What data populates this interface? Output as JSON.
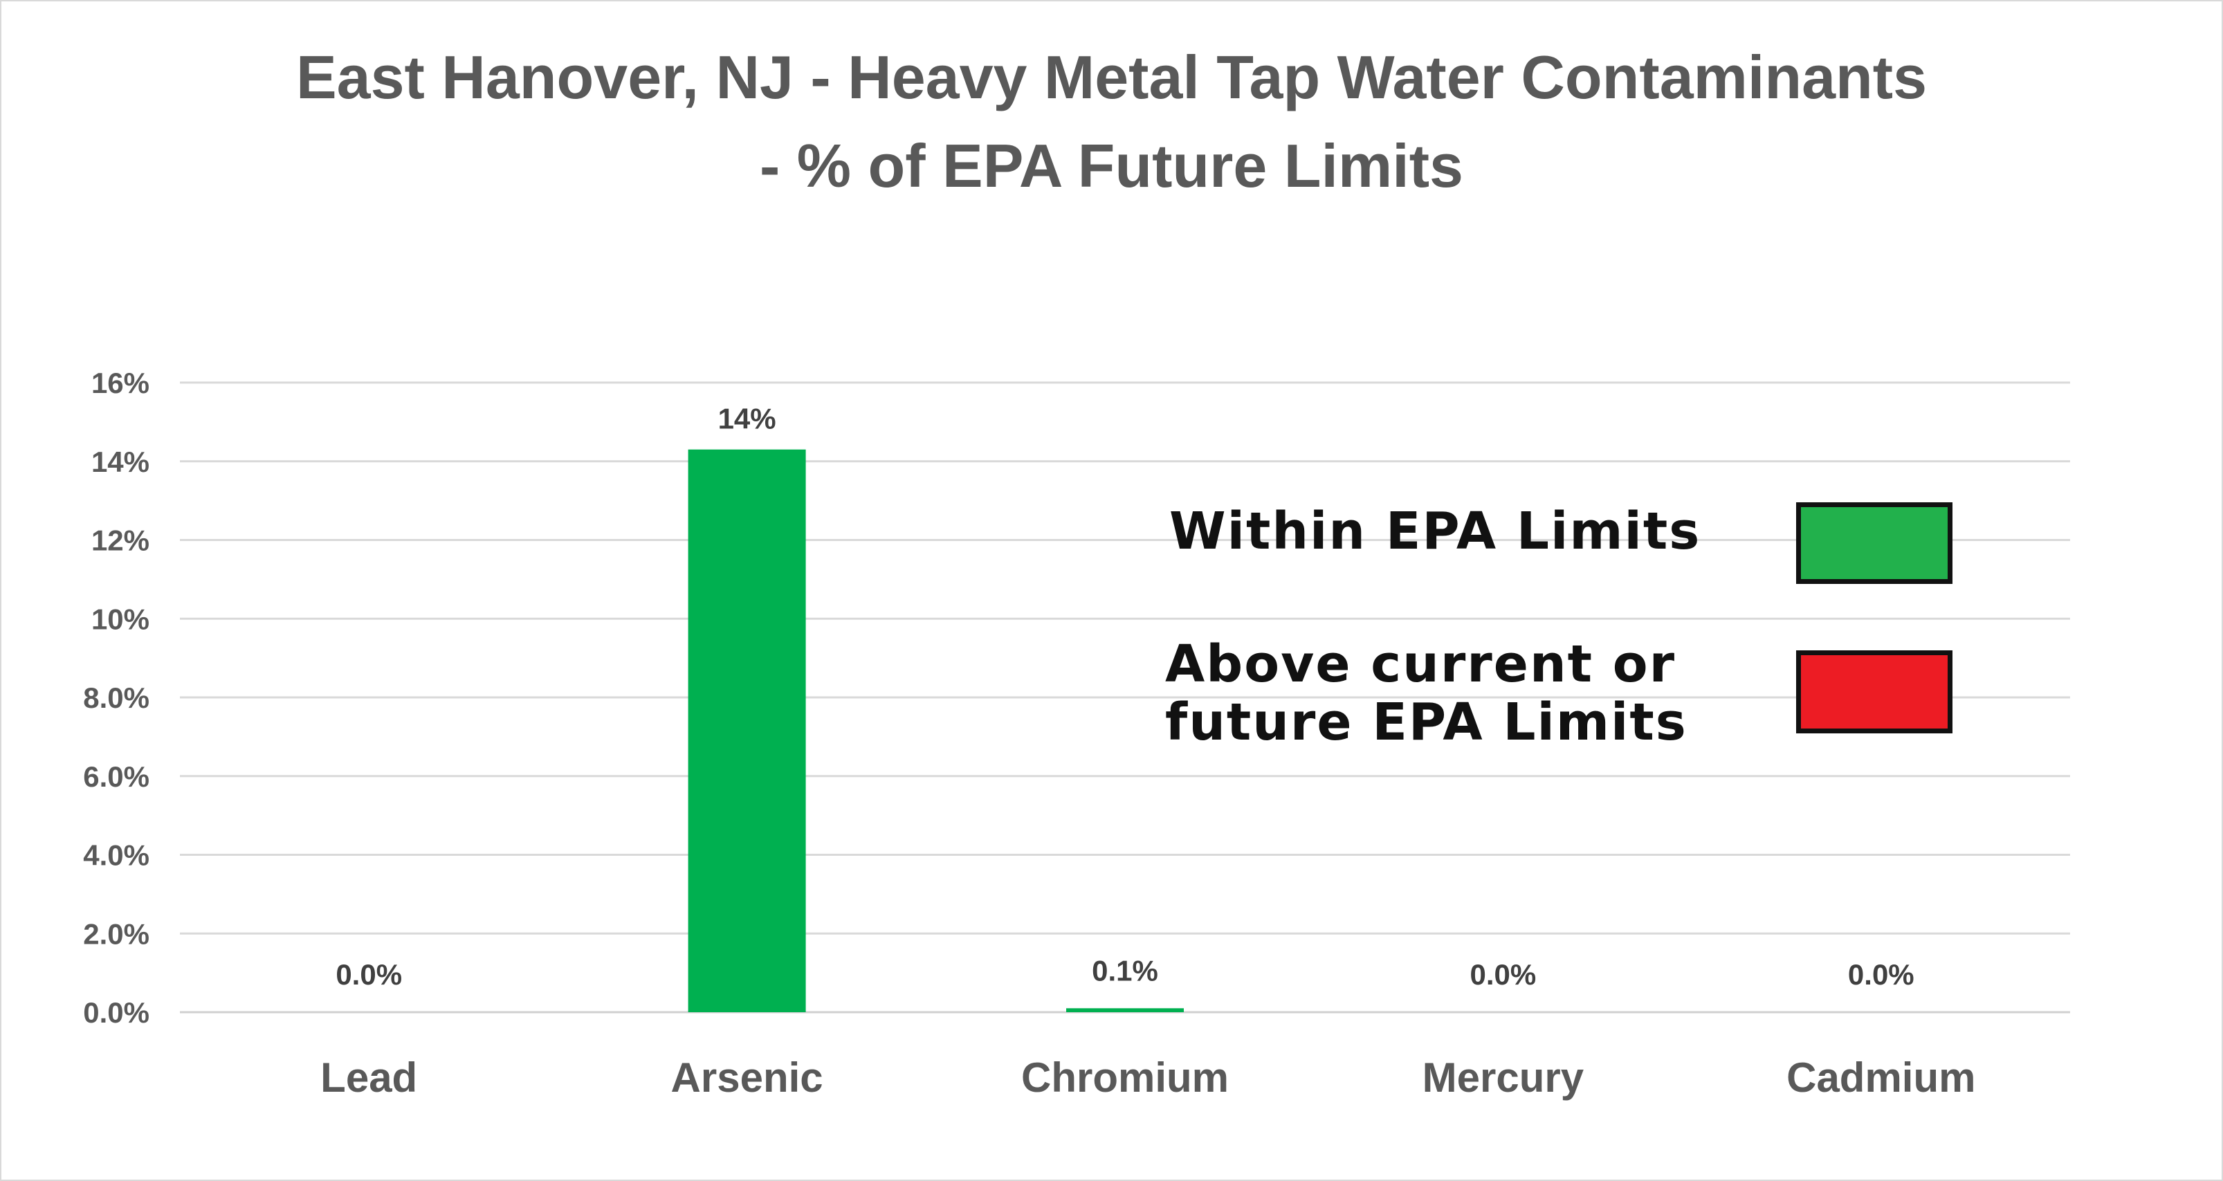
{
  "chart_data": {
    "type": "bar",
    "title_line1": "East Hanover, NJ - Heavy Metal Tap Water Contaminants",
    "title_line2": "- % of EPA Future Limits",
    "categories": [
      "Lead",
      "Arsenic",
      "Chromium",
      "Mercury",
      "Cadmium"
    ],
    "values": [
      0.0,
      14.3,
      0.1,
      0.0,
      0.0
    ],
    "data_labels": [
      "0.0%",
      "14%",
      "0.1%",
      "0.0%",
      "0.0%"
    ],
    "y_tick_labels": [
      "0.0%",
      "2.0%",
      "4.0%",
      "6.0%",
      "8.0%",
      "10%",
      "12%",
      "14%",
      "16%"
    ],
    "ylim": [
      0,
      16
    ],
    "xlabel": "",
    "ylabel": "",
    "grid": "horizontal",
    "bar_color": "#00b050",
    "legend": {
      "placement": "right",
      "items": [
        {
          "label": "Within EPA Limits",
          "color": "#22b14c"
        },
        {
          "label_line1": "Above current or",
          "label_line2": "future EPA Limits",
          "color": "#ed1c24"
        }
      ]
    }
  }
}
